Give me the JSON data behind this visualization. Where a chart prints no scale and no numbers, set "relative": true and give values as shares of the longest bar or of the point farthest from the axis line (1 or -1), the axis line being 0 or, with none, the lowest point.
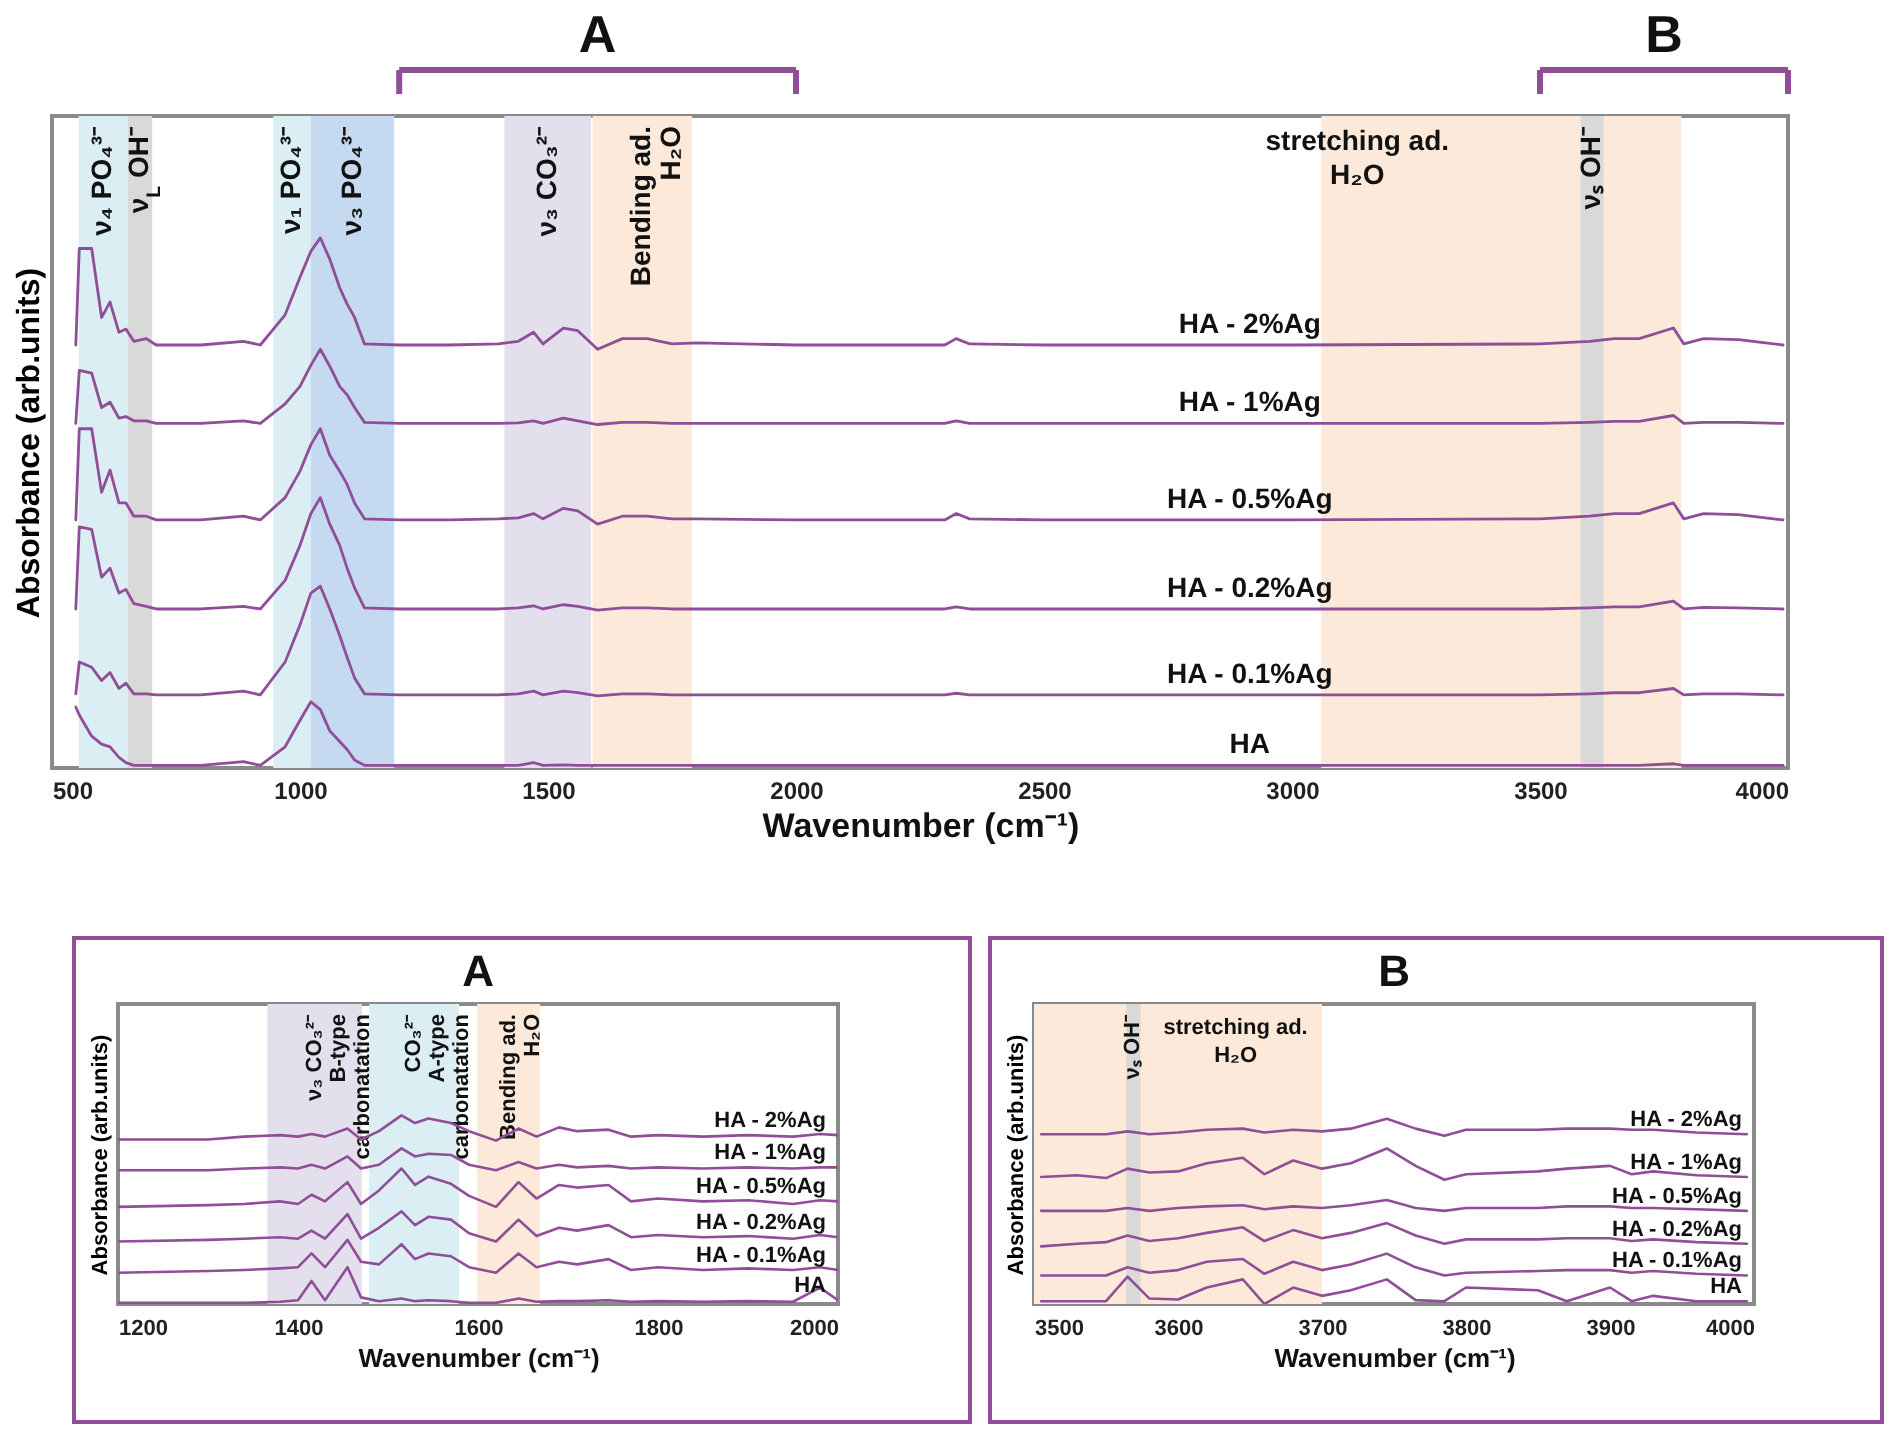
{
  "chart_data": [
    {
      "type": "line",
      "xlabel": "Wavenumber (cm⁻¹)",
      "ylabel": "Absorbance (arb.units)",
      "relative": true,
      "grid": false,
      "legend": false,
      "xlim": [
        500,
        4000
      ],
      "xticks": [
        500,
        1000,
        1500,
        2000,
        2500,
        3000,
        3500,
        4000
      ],
      "x": [
        548,
        555,
        580,
        600,
        617,
        635,
        649,
        665,
        690,
        710,
        800,
        886,
        920,
        970,
        1000,
        1022,
        1041,
        1060,
        1080,
        1095,
        1110,
        1130,
        1200,
        1300,
        1400,
        1440,
        1471,
        1490,
        1531,
        1560,
        1600,
        1650,
        1700,
        1750,
        1800,
        2000,
        2300,
        2323,
        2350,
        2500,
        3000,
        3500,
        3600,
        3650,
        3700,
        3769,
        3790,
        3830,
        3900,
        3990
      ],
      "series": [
        {
          "name": "HA - 2%Ag",
          "color": "#8f4e97",
          "values": [
            0.798,
            0.98,
            0.98,
            0.85,
            0.879,
            0.822,
            0.828,
            0.805,
            0.81,
            0.798,
            0.798,
            0.805,
            0.798,
            0.855,
            0.926,
            0.975,
            1.0,
            0.96,
            0.906,
            0.875,
            0.85,
            0.8,
            0.798,
            0.798,
            0.8,
            0.805,
            0.822,
            0.8,
            0.83,
            0.825,
            0.79,
            0.81,
            0.81,
            0.8,
            0.802,
            0.798,
            0.798,
            0.81,
            0.8,
            0.798,
            0.798,
            0.8,
            0.805,
            0.81,
            0.81,
            0.83,
            0.8,
            0.81,
            0.808,
            0.798
          ]
        },
        {
          "name": "HA - 1%Ag",
          "color": "#8f4e97",
          "values": [
            0.65,
            0.75,
            0.745,
            0.68,
            0.69,
            0.66,
            0.663,
            0.655,
            0.655,
            0.65,
            0.65,
            0.655,
            0.65,
            0.687,
            0.72,
            0.76,
            0.79,
            0.758,
            0.72,
            0.704,
            0.68,
            0.652,
            0.65,
            0.65,
            0.65,
            0.651,
            0.655,
            0.65,
            0.66,
            0.655,
            0.648,
            0.652,
            0.652,
            0.65,
            0.65,
            0.65,
            0.65,
            0.655,
            0.65,
            0.65,
            0.65,
            0.65,
            0.652,
            0.654,
            0.654,
            0.665,
            0.65,
            0.652,
            0.652,
            0.65
          ]
        },
        {
          "name": "HA - 0.5%Ag",
          "color": "#8f4e97",
          "values": [
            0.468,
            0.64,
            0.64,
            0.52,
            0.562,
            0.5,
            0.5,
            0.475,
            0.475,
            0.468,
            0.468,
            0.475,
            0.468,
            0.51,
            0.56,
            0.61,
            0.64,
            0.59,
            0.56,
            0.535,
            0.5,
            0.47,
            0.468,
            0.468,
            0.47,
            0.472,
            0.48,
            0.47,
            0.49,
            0.485,
            0.46,
            0.475,
            0.475,
            0.47,
            0.47,
            0.468,
            0.468,
            0.48,
            0.47,
            0.468,
            0.468,
            0.47,
            0.475,
            0.48,
            0.48,
            0.5,
            0.47,
            0.48,
            0.478,
            0.468
          ]
        },
        {
          "name": "HA - 0.2%Ag",
          "color": "#8f4e97",
          "values": [
            0.3,
            0.455,
            0.45,
            0.36,
            0.377,
            0.33,
            0.337,
            0.31,
            0.305,
            0.3,
            0.3,
            0.305,
            0.3,
            0.354,
            0.42,
            0.48,
            0.51,
            0.46,
            0.42,
            0.377,
            0.34,
            0.302,
            0.3,
            0.3,
            0.3,
            0.302,
            0.306,
            0.3,
            0.308,
            0.305,
            0.298,
            0.302,
            0.302,
            0.3,
            0.3,
            0.3,
            0.3,
            0.304,
            0.3,
            0.3,
            0.3,
            0.3,
            0.302,
            0.304,
            0.304,
            0.315,
            0.3,
            0.303,
            0.302,
            0.3
          ]
        },
        {
          "name": "HA - 0.1%Ag",
          "color": "#8f4e97",
          "values": [
            0.14,
            0.2,
            0.19,
            0.165,
            0.18,
            0.15,
            0.16,
            0.14,
            0.14,
            0.138,
            0.138,
            0.145,
            0.138,
            0.2,
            0.27,
            0.33,
            0.343,
            0.3,
            0.25,
            0.209,
            0.17,
            0.14,
            0.138,
            0.138,
            0.138,
            0.14,
            0.145,
            0.138,
            0.145,
            0.142,
            0.136,
            0.14,
            0.14,
            0.138,
            0.138,
            0.138,
            0.138,
            0.141,
            0.138,
            0.138,
            0.138,
            0.138,
            0.14,
            0.142,
            0.142,
            0.15,
            0.138,
            0.14,
            0.14,
            0.138
          ]
        },
        {
          "name": "HA",
          "color": "#8f4e97",
          "values": [
            0.115,
            0.1,
            0.06,
            0.045,
            0.04,
            0.02,
            0.01,
            0.005,
            0.005,
            0.005,
            0.005,
            0.012,
            0.005,
            0.04,
            0.09,
            0.125,
            0.11,
            0.07,
            0.05,
            0.035,
            0.015,
            0.005,
            0.005,
            0.005,
            0.005,
            0.005,
            0.01,
            0.005,
            0.006,
            0.005,
            0.005,
            0.005,
            0.005,
            0.005,
            0.005,
            0.005,
            0.005,
            0.005,
            0.005,
            0.005,
            0.005,
            0.005,
            0.005,
            0.005,
            0.005,
            0.008,
            0.005,
            0.005,
            0.005,
            0.005
          ]
        }
      ],
      "bands": [
        {
          "axis": "x",
          "from": 554,
          "to": 653,
          "label": "ν₄ PO₄³⁻",
          "color": "#daeef3"
        },
        {
          "axis": "x",
          "from": 653,
          "to": 702,
          "label": "ν$_{L}$ OH⁻",
          "color": "#d9d9d9"
        },
        {
          "axis": "x",
          "from": 946,
          "to": 1022,
          "label": "ν₁ PO₄³⁻",
          "color": "#daeef3"
        },
        {
          "axis": "x",
          "from": 1022,
          "to": 1190,
          "label": "ν₃ PO₄³⁻",
          "color": "#c5d9f1"
        },
        {
          "axis": "x",
          "from": 1412,
          "to": 1587,
          "label": "ν₃ CO₃²⁻",
          "color": "#e4dfec"
        },
        {
          "axis": "x",
          "from": 1590,
          "to": 1790,
          "label": "Bending ad.\nH₂O",
          "color": "#fde9d9"
        },
        {
          "axis": "x",
          "from": 3059,
          "to": 3785,
          "label": "stretching ad.\nH₂O",
          "color": "#fde9d9"
        },
        {
          "axis": "x",
          "from": 3582,
          "to": 3628,
          "label": "νₛ OH⁻",
          "color": "#d9d9d9"
        }
      ],
      "annotations": [
        "A",
        "B"
      ]
    },
    {
      "type": "line",
      "title": "A",
      "xlabel": "Wavenumber (cm⁻¹)",
      "ylabel": "Absorbance (arb.units)",
      "relative": true,
      "grid": false,
      "legend": false,
      "xlim": [
        1200,
        2000
      ],
      "xticks": [
        1200,
        1400,
        1600,
        1800,
        2000
      ],
      "x": [
        1200,
        1300,
        1340,
        1380,
        1400,
        1415,
        1430,
        1455,
        1470,
        1490,
        1515,
        1530,
        1545,
        1570,
        1590,
        1620,
        1645,
        1665,
        1690,
        1710,
        1745,
        1770,
        1800,
        1850,
        1900,
        1950,
        1980,
        2000
      ],
      "series": [
        {
          "name": "HA - 2%Ag",
          "color": "#8f4e97",
          "values": [
            0.872,
            0.872,
            0.887,
            0.895,
            0.887,
            0.901,
            0.887,
            0.93,
            0.872,
            0.916,
            1.0,
            0.959,
            0.983,
            0.959,
            0.916,
            0.866,
            0.93,
            0.887,
            0.936,
            0.916,
            0.924,
            0.887,
            0.895,
            0.887,
            0.895,
            0.887,
            0.901,
            0.895
          ]
        },
        {
          "name": "HA - 1%Ag",
          "color": "#8f4e97",
          "values": [
            0.709,
            0.709,
            0.718,
            0.724,
            0.718,
            0.738,
            0.718,
            0.782,
            0.718,
            0.738,
            0.825,
            0.782,
            0.796,
            0.79,
            0.738,
            0.709,
            0.753,
            0.718,
            0.738,
            0.724,
            0.732,
            0.718,
            0.724,
            0.718,
            0.724,
            0.718,
            0.724,
            0.724
          ]
        },
        {
          "name": "HA - 0.5%Ag",
          "color": "#8f4e97",
          "values": [
            0.515,
            0.524,
            0.53,
            0.544,
            0.53,
            0.579,
            0.544,
            0.646,
            0.53,
            0.602,
            0.718,
            0.631,
            0.675,
            0.637,
            0.573,
            0.515,
            0.646,
            0.559,
            0.631,
            0.617,
            0.631,
            0.544,
            0.559,
            0.544,
            0.55,
            0.53,
            0.55,
            0.544
          ]
        },
        {
          "name": "HA - 0.2%Ag",
          "color": "#8f4e97",
          "values": [
            0.331,
            0.34,
            0.346,
            0.354,
            0.346,
            0.389,
            0.346,
            0.476,
            0.346,
            0.404,
            0.491,
            0.418,
            0.462,
            0.447,
            0.375,
            0.331,
            0.447,
            0.36,
            0.404,
            0.389,
            0.418,
            0.354,
            0.366,
            0.354,
            0.36,
            0.346,
            0.366,
            0.354
          ]
        },
        {
          "name": "HA - 0.1%Ag",
          "color": "#8f4e97",
          "values": [
            0.166,
            0.175,
            0.18,
            0.189,
            0.195,
            0.268,
            0.195,
            0.34,
            0.224,
            0.21,
            0.317,
            0.238,
            0.268,
            0.253,
            0.195,
            0.166,
            0.268,
            0.195,
            0.224,
            0.21,
            0.238,
            0.18,
            0.195,
            0.18,
            0.189,
            0.18,
            0.195,
            0.18
          ]
        },
        {
          "name": "HA",
          "color": "#8f4e97",
          "values": [
            0.006,
            0.006,
            0.006,
            0.012,
            0.02,
            0.122,
            0.02,
            0.195,
            0.035,
            0.015,
            0.029,
            0.015,
            0.02,
            0.015,
            0.006,
            0.006,
            0.029,
            0.012,
            0.015,
            0.015,
            0.02,
            0.012,
            0.015,
            0.012,
            0.015,
            0.012,
            0.087,
            0.02
          ]
        }
      ],
      "bands": [
        {
          "axis": "x",
          "from": 1366,
          "to": 1471,
          "label": "ν₃ CO₃²⁻\nB-type\ncarbonatation",
          "color": "#e4dfec"
        },
        {
          "axis": "x",
          "from": 1479,
          "to": 1579,
          "label": "CO₃²⁻\nA-type\ncarbonatation",
          "color": "#daeef3"
        },
        {
          "axis": "x",
          "from": 1599,
          "to": 1669,
          "label": "Bending ad.\nH₂O",
          "color": "#fde9d9"
        }
      ]
    },
    {
      "type": "line",
      "title": "B",
      "xlabel": "Wavenumber (cm⁻¹)",
      "ylabel": "Absorbance (arb.units)",
      "relative": true,
      "grid": false,
      "legend": false,
      "xlim": [
        3500,
        4000
      ],
      "xticks": [
        3500,
        3600,
        3700,
        3800,
        3900,
        4000
      ],
      "x": [
        3505,
        3530,
        3550,
        3565,
        3580,
        3600,
        3620,
        3645,
        3660,
        3680,
        3700,
        3720,
        3745,
        3765,
        3785,
        3800,
        3850,
        3870,
        3900,
        3915,
        3930,
        3960,
        3995
      ],
      "series": [
        {
          "name": "HA - 2%Ag",
          "color": "#8f4e97",
          "values": [
            0.917,
            0.917,
            0.917,
            0.932,
            0.917,
            0.926,
            0.941,
            0.947,
            0.926,
            0.941,
            0.932,
            0.947,
            1.0,
            0.947,
            0.908,
            0.941,
            0.941,
            0.947,
            0.947,
            0.941,
            0.941,
            0.926,
            0.917
          ]
        },
        {
          "name": "HA - 1%Ag",
          "color": "#8f4e97",
          "values": [
            0.686,
            0.695,
            0.68,
            0.731,
            0.71,
            0.716,
            0.76,
            0.79,
            0.701,
            0.775,
            0.731,
            0.76,
            0.84,
            0.746,
            0.671,
            0.701,
            0.716,
            0.731,
            0.746,
            0.701,
            0.716,
            0.695,
            0.686
          ]
        },
        {
          "name": "HA - 0.5%Ag",
          "color": "#8f4e97",
          "values": [
            0.503,
            0.503,
            0.503,
            0.518,
            0.503,
            0.518,
            0.527,
            0.533,
            0.512,
            0.527,
            0.518,
            0.533,
            0.562,
            0.518,
            0.503,
            0.518,
            0.518,
            0.527,
            0.527,
            0.518,
            0.518,
            0.512,
            0.503
          ]
        },
        {
          "name": "HA - 0.2%Ag",
          "color": "#8f4e97",
          "values": [
            0.311,
            0.325,
            0.334,
            0.37,
            0.34,
            0.355,
            0.384,
            0.414,
            0.34,
            0.399,
            0.355,
            0.384,
            0.437,
            0.37,
            0.325,
            0.349,
            0.349,
            0.355,
            0.355,
            0.34,
            0.349,
            0.334,
            0.325
          ]
        },
        {
          "name": "HA - 0.1%Ag",
          "color": "#8f4e97",
          "values": [
            0.154,
            0.154,
            0.154,
            0.198,
            0.169,
            0.183,
            0.228,
            0.243,
            0.163,
            0.228,
            0.183,
            0.213,
            0.272,
            0.198,
            0.154,
            0.169,
            0.178,
            0.183,
            0.183,
            0.169,
            0.178,
            0.163,
            0.154
          ]
        },
        {
          "name": "HA",
          "color": "#8f4e97",
          "values": [
            0.015,
            0.015,
            0.015,
            0.148,
            0.03,
            0.024,
            0.089,
            0.133,
            0.0,
            0.089,
            0.044,
            0.074,
            0.133,
            0.021,
            0.015,
            0.089,
            0.074,
            0.015,
            0.089,
            0.015,
            0.044,
            0.015,
            0.015
          ]
        }
      ],
      "bands": [
        {
          "axis": "x",
          "from": 3500,
          "to": 3700,
          "label": "stretching ad.\nH₂O",
          "color": "#fde9d9"
        },
        {
          "axis": "x",
          "from": 3564,
          "to": 3574,
          "label": "νₛ OH⁻",
          "color": "#d9d9d9"
        }
      ]
    }
  ]
}
